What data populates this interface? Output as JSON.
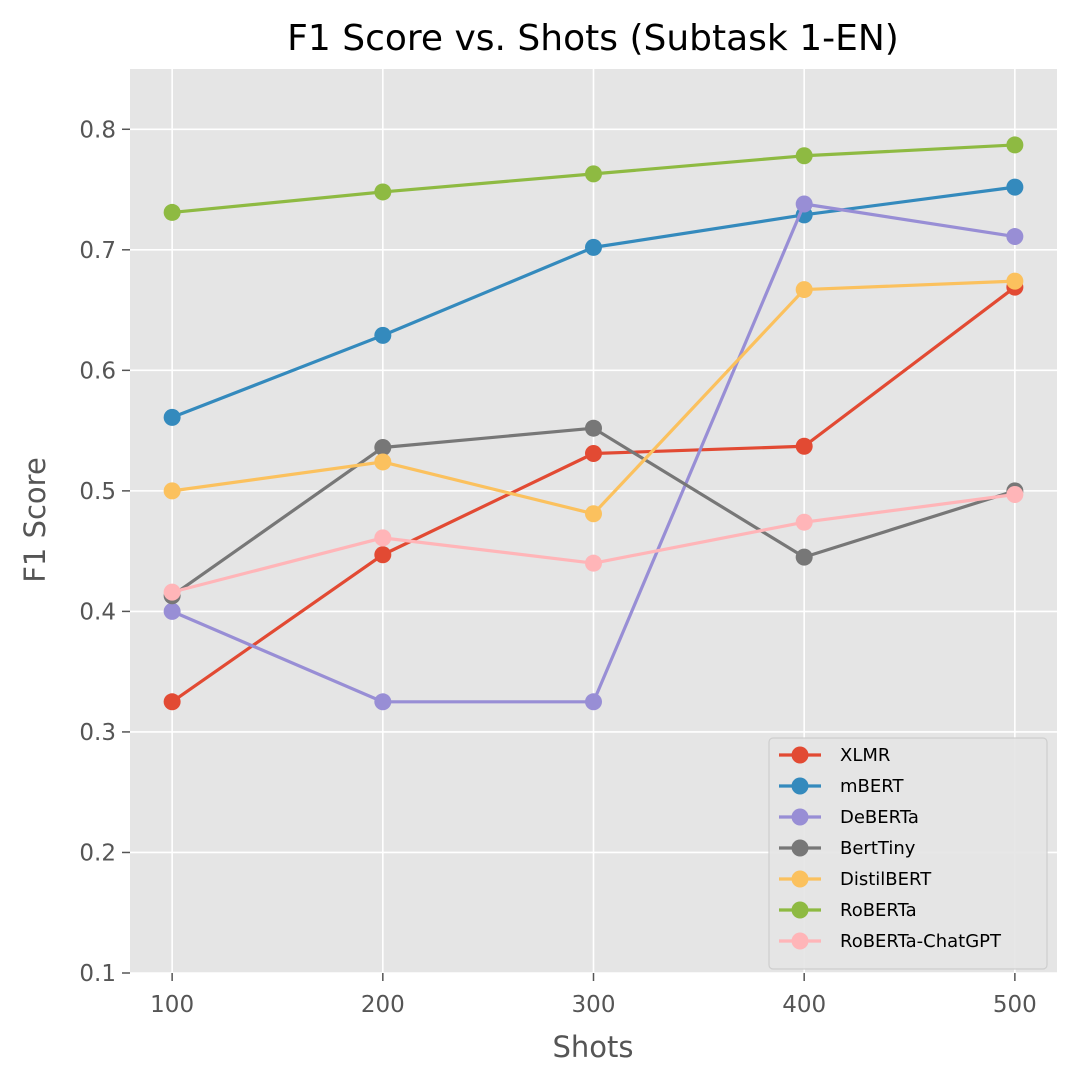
{
  "chart_data": {
    "type": "line",
    "title": "F1 Score vs. Shots (Subtask 1-EN)",
    "xlabel": "Shots",
    "ylabel": "F1 Score",
    "x": [
      100,
      200,
      300,
      400,
      500
    ],
    "x_tick_labels": [
      "100",
      "200",
      "300",
      "400",
      "500"
    ],
    "y_tick_labels": [
      "0.1",
      "0.2",
      "0.3",
      "0.4",
      "0.5",
      "0.6",
      "0.7",
      "0.8"
    ],
    "y_ticks": [
      0.1,
      0.2,
      0.3,
      0.4,
      0.5,
      0.6,
      0.7,
      0.8
    ],
    "xlim": [
      80,
      520
    ],
    "ylim": [
      0.1,
      0.85
    ],
    "grid": true,
    "legend_position": "lower-right",
    "style": {
      "background": "#e5e5e5",
      "grid_color": "#ffffff",
      "text_color": "#555555"
    },
    "series": [
      {
        "name": "XLMR",
        "color": "#e24a33",
        "values": [
          0.325,
          0.447,
          0.531,
          0.537,
          0.669
        ]
      },
      {
        "name": "mBERT",
        "color": "#348abd",
        "values": [
          0.561,
          0.629,
          0.702,
          0.729,
          0.752
        ]
      },
      {
        "name": "DeBERTa",
        "color": "#988ed5",
        "values": [
          0.4,
          0.325,
          0.325,
          0.738,
          0.711
        ]
      },
      {
        "name": "BertTiny",
        "color": "#777777",
        "values": [
          0.413,
          0.536,
          0.552,
          0.445,
          0.5
        ]
      },
      {
        "name": "DistilBERT",
        "color": "#fbc15e",
        "values": [
          0.5,
          0.524,
          0.481,
          0.667,
          0.674
        ]
      },
      {
        "name": "RoBERTa",
        "color": "#8eba42",
        "values": [
          0.731,
          0.748,
          0.763,
          0.778,
          0.787
        ]
      },
      {
        "name": "RoBERTa-ChatGPT",
        "color": "#ffb5b8",
        "values": [
          0.416,
          0.461,
          0.44,
          0.474,
          0.497
        ]
      }
    ]
  }
}
